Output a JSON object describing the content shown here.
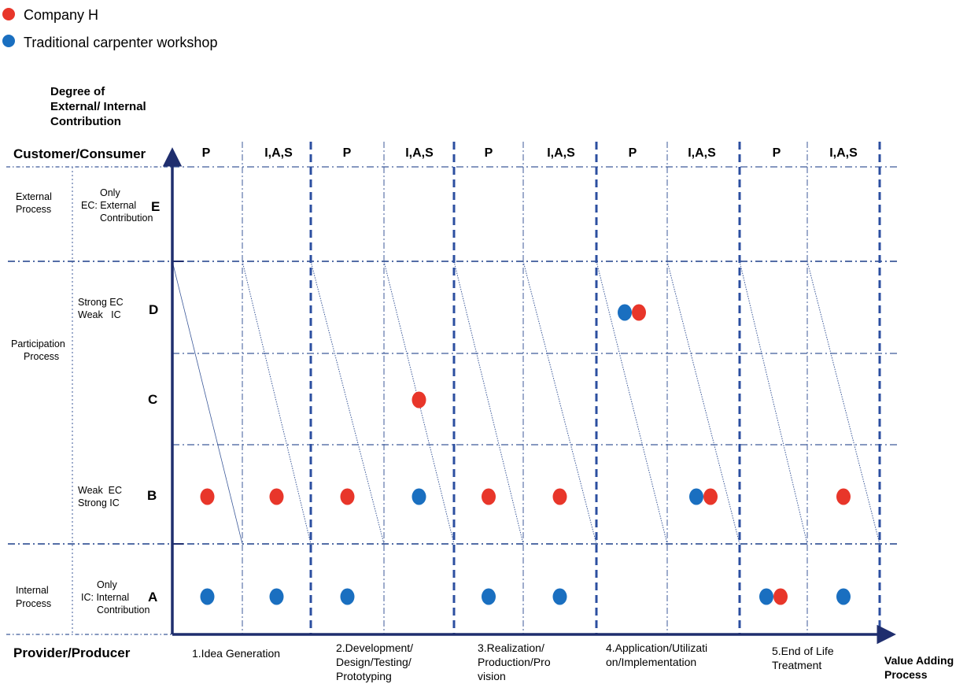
{
  "legend": [
    {
      "label": "Company H",
      "color": "#e8362a"
    },
    {
      "label": "Traditional carpenter workshop",
      "color": "#1a6fc0"
    }
  ],
  "colors": {
    "axis": "#1f2e6e",
    "grid": "#3d5a9a",
    "company_h": "#e8362a",
    "traditional": "#1a6fc0"
  },
  "y_axis_title": [
    "Degree of",
    "External/ Internal",
    "Contribution"
  ],
  "top_label": "Customer/Consumer",
  "bottom_label": "Provider/Producer",
  "x_axis_title": [
    "Value Adding",
    "Process"
  ],
  "column_headers": [
    "P",
    "I,A,S",
    "P",
    "I,A,S",
    "P",
    "I,A,S",
    "P",
    "I,A,S",
    "P",
    "I,A,S"
  ],
  "phases": [
    {
      "lines": [
        "1.Idea Generation"
      ]
    },
    {
      "lines": [
        "2.Development/",
        "Design/Testing/",
        "Prototyping"
      ]
    },
    {
      "lines": [
        "3.Realization/",
        "Production/Pro",
        "vision"
      ]
    },
    {
      "lines": [
        "4.Application/Utilizati",
        "on/Implementation"
      ]
    },
    {
      "lines": [
        "5.End of Life",
        "Treatment"
      ]
    }
  ],
  "process_groups": [
    {
      "lines": [
        "External",
        "Process"
      ]
    },
    {
      "lines": [
        "Participation",
        "Process"
      ]
    },
    {
      "lines": [
        "Internal",
        "Process"
      ]
    }
  ],
  "levels": [
    {
      "letter": "E",
      "desc": [
        "Only",
        "EC: External",
        "Contribution"
      ]
    },
    {
      "letter": "D",
      "desc": [
        "Strong EC",
        "Weak   IC"
      ]
    },
    {
      "letter": "C",
      "desc": []
    },
    {
      "letter": "B",
      "desc": [
        "Weak  EC",
        "Strong IC"
      ]
    },
    {
      "letter": "A",
      "desc": [
        "Only",
        "IC: Internal",
        "Contribution"
      ]
    }
  ],
  "points": [
    {
      "series": "Company H",
      "column": 1,
      "level": "B"
    },
    {
      "series": "Company H",
      "column": 2,
      "level": "B"
    },
    {
      "series": "Company H",
      "column": 3,
      "level": "B"
    },
    {
      "series": "Company H",
      "column": 4,
      "level": "C"
    },
    {
      "series": "Company H",
      "column": 5,
      "level": "B"
    },
    {
      "series": "Company H",
      "column": 6,
      "level": "B"
    },
    {
      "series": "Company H",
      "column": 7,
      "level": "D"
    },
    {
      "series": "Company H",
      "column": 8,
      "level": "B"
    },
    {
      "series": "Company H",
      "column": 9,
      "level": "A"
    },
    {
      "series": "Company H",
      "column": 10,
      "level": "B"
    },
    {
      "series": "Traditional carpenter workshop",
      "column": 1,
      "level": "A"
    },
    {
      "series": "Traditional carpenter workshop",
      "column": 2,
      "level": "A"
    },
    {
      "series": "Traditional carpenter workshop",
      "column": 3,
      "level": "A"
    },
    {
      "series": "Traditional carpenter workshop",
      "column": 4,
      "level": "B"
    },
    {
      "series": "Traditional carpenter workshop",
      "column": 5,
      "level": "A"
    },
    {
      "series": "Traditional carpenter workshop",
      "column": 6,
      "level": "A"
    },
    {
      "series": "Traditional carpenter workshop",
      "column": 7,
      "level": "D"
    },
    {
      "series": "Traditional carpenter workshop",
      "column": 8,
      "level": "B"
    },
    {
      "series": "Traditional carpenter workshop",
      "column": 9,
      "level": "A"
    },
    {
      "series": "Traditional carpenter workshop",
      "column": 10,
      "level": "A"
    }
  ]
}
